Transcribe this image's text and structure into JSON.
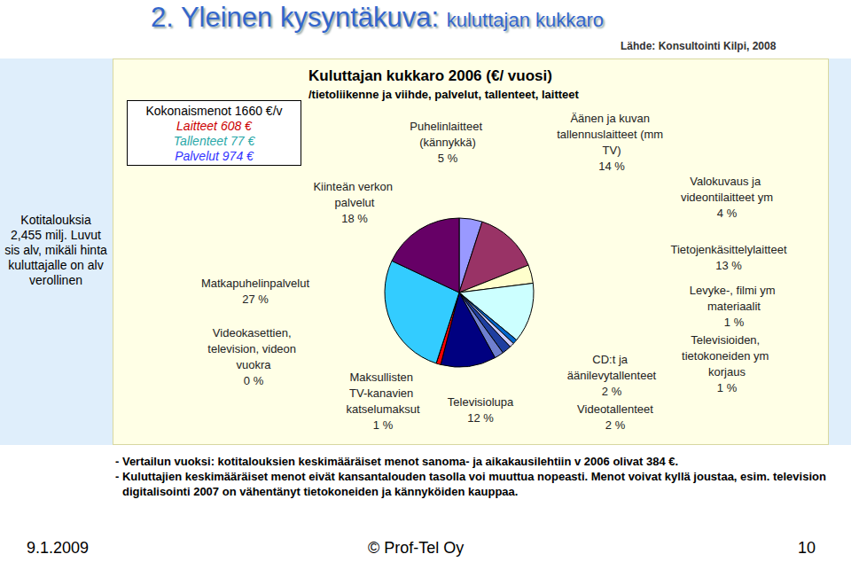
{
  "chart_data": {
    "type": "pie",
    "title": "Kuluttajan kukkaro 2006 (€/ vuosi)",
    "subtitle": "/tietoliikenne ja viihde, palvelut, tallenteet, laitteet",
    "categories": [
      "Puhelinlaitteet (kännykkä)",
      "Äänen ja kuvan tallennuslaitteet (mm TV)",
      "Valokuvaus ja videontilaitteet ym",
      "Tietojenkäsittelylaitteet",
      "Levyke-, filmi ym materiaalit",
      "Televisioiden, tietokoneiden ym korjaus",
      "CD:t ja äänilevytallenteet",
      "Videotallenteet",
      "Televisiolupa",
      "Maksullisten TV-kanavien katselumaksut",
      "Videokasettien, television, videon vuokra",
      "Matkapuhelinpalvelut",
      "Kiinteän verkon palvelut"
    ],
    "values": [
      5,
      14,
      4,
      13,
      1,
      1,
      2,
      2,
      12,
      1,
      0,
      27,
      18
    ],
    "value_labels": [
      "5 %",
      "14 %",
      "4 %",
      "13 %",
      "1 %",
      "1 %",
      "2 %",
      "2 %",
      "12 %",
      "1 %",
      "0 %",
      "27 %",
      "18 %"
    ],
    "colors": [
      "#9999ff",
      "#993366",
      "#ffffcc",
      "#ccffff",
      "#0066cc",
      "#ccccff",
      "#1f3fa0",
      "#6f7fcf",
      "#000080",
      "#ff0000",
      "#ffff00",
      "#33ccff",
      "#660066"
    ],
    "data_labels": true
  },
  "slide": {
    "title_main": "2. Yleinen kysyntäkuva:",
    "title_sub": "kuluttajan kukkaro",
    "source": "Lähde: Konsultointi Kilpi, 2008",
    "side_note": "Kotitalouksia 2,455 milj. Luvut sis alv, mikäli hinta kuluttajalle on alv verollinen",
    "totals": [
      "Kokonaismenot 1660 €/v",
      "Laitteet 608 €",
      "Tallenteet 77 €",
      "Palvelut 974 €"
    ],
    "notes": [
      "- Vertailun vuoksi: kotitalouksien keskimääräiset menot sanoma- ja aikakausilehtiin v 2006 olivat 384 €.",
      "- Kuluttajien keskimääräiset menot eivät kansantalouden tasolla voi muuttua nopeasti. Menot voivat kyllä joustaa, esim. television digitalisointi 2007 on vähentänyt tietokoneiden ja kännyköiden kauppaa."
    ],
    "footer": {
      "date": "9.1.2009",
      "owner": "© Prof-Tel Oy",
      "page": "10"
    }
  }
}
